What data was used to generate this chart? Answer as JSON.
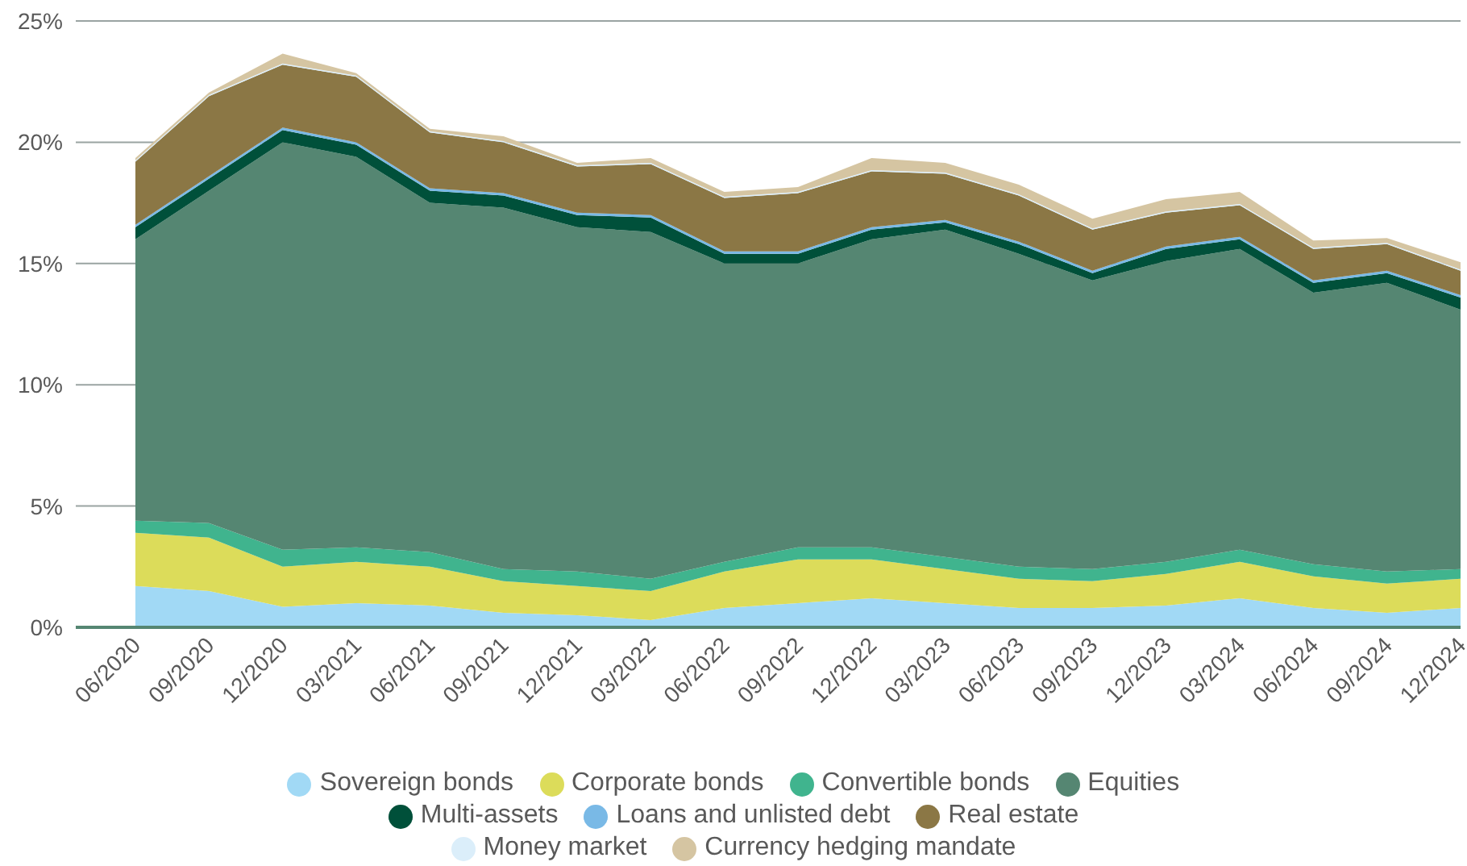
{
  "chart_data": {
    "type": "area",
    "stacked": true,
    "categories": [
      "06/2020",
      "09/2020",
      "12/2020",
      "03/2021",
      "06/2021",
      "09/2021",
      "12/2021",
      "03/2022",
      "06/2022",
      "09/2022",
      "12/2022",
      "03/2023",
      "06/2023",
      "09/2023",
      "12/2023",
      "03/2024",
      "06/2024",
      "09/2024",
      "12/2024"
    ],
    "series": [
      {
        "name": "Sovereign bonds",
        "color": "#a1d9f5",
        "values": [
          1.7,
          1.5,
          0.85,
          1.0,
          0.9,
          0.6,
          0.5,
          0.3,
          0.8,
          1.0,
          1.2,
          1.0,
          0.8,
          0.8,
          0.9,
          1.2,
          0.8,
          0.6,
          0.8
        ]
      },
      {
        "name": "Corporate bonds",
        "color": "#dcdc5a",
        "values": [
          2.2,
          2.2,
          1.65,
          1.7,
          1.6,
          1.3,
          1.2,
          1.2,
          1.5,
          1.8,
          1.6,
          1.4,
          1.2,
          1.1,
          1.3,
          1.5,
          1.3,
          1.2,
          1.2
        ]
      },
      {
        "name": "Convertible bonds",
        "color": "#40b48e",
        "values": [
          0.5,
          0.6,
          0.7,
          0.6,
          0.6,
          0.5,
          0.6,
          0.5,
          0.4,
          0.5,
          0.5,
          0.5,
          0.5,
          0.5,
          0.5,
          0.5,
          0.5,
          0.5,
          0.4
        ]
      },
      {
        "name": "Equities",
        "color": "#558672",
        "values": [
          11.6,
          13.7,
          16.8,
          16.1,
          14.4,
          14.9,
          14.2,
          14.3,
          12.3,
          11.7,
          12.7,
          13.5,
          12.9,
          11.9,
          12.4,
          12.4,
          11.2,
          11.9,
          10.7
        ]
      },
      {
        "name": "Multi-assets",
        "color": "#00503a",
        "values": [
          0.5,
          0.5,
          0.5,
          0.5,
          0.5,
          0.5,
          0.5,
          0.6,
          0.4,
          0.4,
          0.4,
          0.3,
          0.4,
          0.3,
          0.5,
          0.4,
          0.4,
          0.4,
          0.5
        ]
      },
      {
        "name": "Loans and unlisted debt",
        "color": "#79b9e6",
        "values": [
          0.1,
          0.1,
          0.1,
          0.1,
          0.1,
          0.1,
          0.1,
          0.1,
          0.1,
          0.1,
          0.1,
          0.1,
          0.1,
          0.1,
          0.1,
          0.1,
          0.1,
          0.1,
          0.1
        ]
      },
      {
        "name": "Real estate",
        "color": "#8b7745",
        "values": [
          2.6,
          3.3,
          2.6,
          2.7,
          2.3,
          2.1,
          1.9,
          2.1,
          2.2,
          2.4,
          2.3,
          1.9,
          1.9,
          1.7,
          1.4,
          1.3,
          1.3,
          1.1,
          1.0
        ]
      },
      {
        "name": "Money market",
        "color": "#dbeefa",
        "values": [
          0.05,
          0.05,
          0.05,
          0.05,
          0.05,
          0.05,
          0.05,
          0.05,
          0.05,
          0.05,
          0.05,
          0.05,
          0.05,
          0.05,
          0.05,
          0.05,
          0.05,
          0.05,
          0.05
        ]
      },
      {
        "name": "Currency hedging mandate",
        "color": "#d5c5a2",
        "values": [
          0.1,
          0.1,
          0.4,
          0.1,
          0.1,
          0.2,
          0.1,
          0.2,
          0.2,
          0.2,
          0.5,
          0.4,
          0.4,
          0.4,
          0.5,
          0.5,
          0.3,
          0.2,
          0.3
        ]
      }
    ],
    "ylim": [
      0,
      25
    ],
    "yticks": [
      {
        "value": 0,
        "label": "0%"
      },
      {
        "value": 5,
        "label": "5%"
      },
      {
        "value": 10,
        "label": "10%"
      },
      {
        "value": 15,
        "label": "15%"
      },
      {
        "value": 20,
        "label": "20%"
      },
      {
        "value": 25,
        "label": "25%"
      }
    ],
    "grid": "y",
    "legend": "bottom"
  }
}
